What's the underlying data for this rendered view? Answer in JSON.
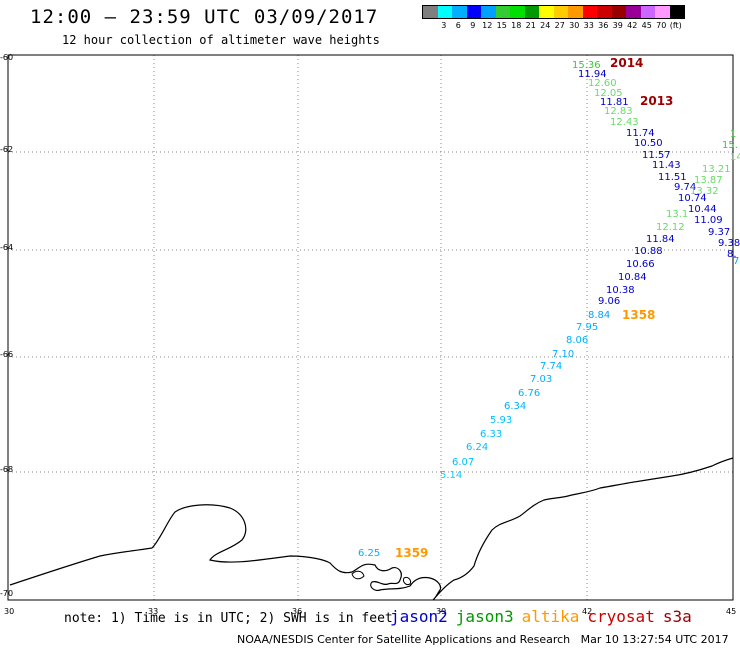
{
  "header": {
    "title": "12:00 – 23:59 UTC 03/09/2017",
    "subtitle": "12 hour collection of altimeter wave heights"
  },
  "scale": {
    "colors": [
      "#7f7f7f",
      "#00ffff",
      "#00b0ff",
      "#0000ff",
      "#00a0ff",
      "#33cc33",
      "#00e000",
      "#009900",
      "#ffff00",
      "#ffcc00",
      "#ff9900",
      "#ff0000",
      "#cc0000",
      "#990000",
      "#990099",
      "#cc66ff",
      "#ff99ff",
      "#000000"
    ],
    "labels": [
      "",
      "3",
      "6",
      "9",
      "12",
      "15",
      "18",
      "21",
      "24",
      "27",
      "30",
      "33",
      "36",
      "39",
      "42",
      "45",
      "70",
      "(ft)"
    ]
  },
  "map": {
    "lat_labels": [
      "-60",
      "-62",
      "-64",
      "-66",
      "-68",
      "-70"
    ],
    "lon_labels": [
      "30",
      "33",
      "36",
      "39",
      "42",
      "45"
    ],
    "track_times": [
      {
        "text": "2014",
        "color": "#990000"
      },
      {
        "text": "2013",
        "color": "#990000"
      },
      {
        "text": "1358",
        "color": "#ff9900"
      },
      {
        "text": "1359",
        "color": "#ff9900"
      }
    ],
    "wave_heights": [
      {
        "v": "15.36",
        "c": "#33cc33"
      },
      {
        "v": "11.94",
        "c": "#0000cc"
      },
      {
        "v": "12.60",
        "c": "#66dd66"
      },
      {
        "v": "12.05",
        "c": "#66dd66"
      },
      {
        "v": "11.81",
        "c": "#0000cc"
      },
      {
        "v": "12.83",
        "c": "#66dd66"
      },
      {
        "v": "12.43",
        "c": "#66dd66"
      },
      {
        "v": "11.74",
        "c": "#0000cc"
      },
      {
        "v": "10.50",
        "c": "#0000cc"
      },
      {
        "v": "11.57",
        "c": "#0000cc"
      },
      {
        "v": "11.43",
        "c": "#0000cc"
      },
      {
        "v": "11.51",
        "c": "#0000cc"
      },
      {
        "v": "9.74",
        "c": "#0000cc"
      },
      {
        "v": "10.74",
        "c": "#0000cc"
      },
      {
        "v": "10.44",
        "c": "#0000cc"
      },
      {
        "v": "11.09",
        "c": "#0000cc"
      },
      {
        "v": "9.37",
        "c": "#0000cc"
      },
      {
        "v": "9.38",
        "c": "#0000cc"
      },
      {
        "v": "8.",
        "c": "#0000cc"
      },
      {
        "v": "13.1",
        "c": "#66dd66"
      },
      {
        "v": "12.12",
        "c": "#66dd66"
      },
      {
        "v": "11.84",
        "c": "#0000cc"
      },
      {
        "v": "10.88",
        "c": "#0000cc"
      },
      {
        "v": "10.66",
        "c": "#0000cc"
      },
      {
        "v": "10.84",
        "c": "#0000cc"
      },
      {
        "v": "10.38",
        "c": "#0000cc"
      },
      {
        "v": "9.06",
        "c": "#0000cc"
      },
      {
        "v": "8.84",
        "c": "#00a0ff"
      },
      {
        "v": "7.95",
        "c": "#00b0ff"
      },
      {
        "v": "8.06",
        "c": "#00b0ff"
      },
      {
        "v": "7.10",
        "c": "#00b0ff"
      },
      {
        "v": "7.74",
        "c": "#00b0ff"
      },
      {
        "v": "7.03",
        "c": "#00b0ff"
      },
      {
        "v": "6.76",
        "c": "#00b0ff"
      },
      {
        "v": "6.34",
        "c": "#00b0ff"
      },
      {
        "v": "5.93",
        "c": "#00c0ff"
      },
      {
        "v": "6.33",
        "c": "#00c0ff"
      },
      {
        "v": "6.24",
        "c": "#00c0ff"
      },
      {
        "v": "6.07",
        "c": "#00c0ff"
      },
      {
        "v": "5.14",
        "c": "#00d0ff"
      },
      {
        "v": "6.25",
        "c": "#00b0ff"
      },
      {
        "v": "14.8",
        "c": "#66dd66"
      },
      {
        "v": "13.21",
        "c": "#66dd66"
      },
      {
        "v": "13.87",
        "c": "#66dd66"
      },
      {
        "v": "13.32",
        "c": "#66dd66"
      },
      {
        "v": "15.",
        "c": "#33cc33"
      },
      {
        "v": "1",
        "c": "#33cc33"
      },
      {
        "v": "7",
        "c": "#00a0ff"
      }
    ]
  },
  "legend": {
    "note": "note: 1) Time is in UTC; 2) SWH is in feet",
    "satellites": [
      {
        "name": "jason2",
        "color": "#0000cc"
      },
      {
        "name": "jason3",
        "color": "#009900"
      },
      {
        "name": "altika",
        "color": "#ff9900"
      },
      {
        "name": "cryosat",
        "color": "#cc0000"
      },
      {
        "name": "s3a",
        "color": "#990000"
      }
    ]
  },
  "footer": {
    "credit": "NOAA/NESDIS Center for Satellite Applications and Research   Mar 10 13:27:54 UTC 2017"
  }
}
